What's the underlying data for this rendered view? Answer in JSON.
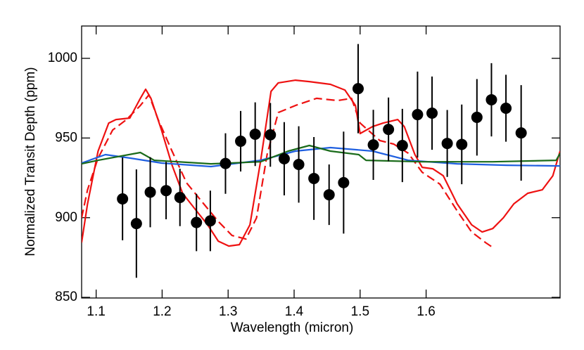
{
  "chart_data": {
    "type": "scatter",
    "xlabel": "Wavelength (micron)",
    "ylabel": "Normalized Transit Depth (ppm)",
    "xlim": [
      1.078,
      1.803
    ],
    "ylim": [
      849.6,
      1020.3
    ],
    "xticks": [
      1.1,
      1.2,
      1.3,
      1.4,
      1.5,
      1.6
    ],
    "yticks": [
      850,
      900,
      950,
      1000
    ],
    "points": {
      "color": "#000000",
      "x": [
        1.14,
        1.161,
        1.182,
        1.206,
        1.227,
        1.252,
        1.273,
        1.296,
        1.319,
        1.341,
        1.364,
        1.385,
        1.407,
        1.43,
        1.453,
        1.475,
        1.497,
        1.52,
        1.543,
        1.564,
        1.587,
        1.609,
        1.632,
        1.654,
        1.677,
        1.699,
        1.721,
        1.744
      ],
      "values": [
        911.8,
        896.3,
        916.0,
        917.0,
        912.7,
        897.0,
        898.0,
        934.0,
        948.0,
        952.4,
        952.0,
        937.0,
        933.4,
        924.6,
        914.4,
        922.0,
        981.0,
        945.7,
        955.4,
        945.3,
        964.7,
        965.6,
        946.6,
        946.0,
        963.0,
        974.0,
        968.7,
        953.2
      ],
      "errors": [
        26,
        34,
        22,
        18,
        18,
        18,
        19,
        19,
        19,
        20,
        20,
        23,
        24,
        26,
        19,
        32,
        28,
        22,
        20,
        23,
        27,
        23,
        21,
        25,
        24,
        23,
        21,
        30
      ]
    },
    "lines": [
      {
        "color": "#ee1111",
        "dashed": false,
        "x": [
          1.078,
          1.087,
          1.103,
          1.119,
          1.13,
          1.151,
          1.167,
          1.175,
          1.183,
          1.199,
          1.215,
          1.231,
          1.252,
          1.269,
          1.285,
          1.301,
          1.317,
          1.333,
          1.349,
          1.365,
          1.376,
          1.402,
          1.423,
          1.455,
          1.477,
          1.493,
          1.5,
          1.519,
          1.535,
          1.557,
          1.567,
          1.583,
          1.594,
          1.61,
          1.626,
          1.647,
          1.669,
          1.685,
          1.701,
          1.717,
          1.733,
          1.754,
          1.776,
          1.792,
          1.803
        ],
        "values": [
          884.4,
          908.7,
          941.8,
          959.4,
          961.6,
          962.5,
          974.9,
          980.6,
          974.9,
          955.0,
          933.0,
          915.3,
          904.3,
          895.5,
          885.3,
          882.2,
          883.1,
          895.5,
          935.1,
          979.3,
          984.6,
          986.3,
          985.4,
          983.7,
          980.1,
          970.4,
          952.8,
          957.2,
          959.4,
          961.6,
          957.2,
          939.6,
          931.6,
          930.7,
          926.3,
          908.7,
          895.5,
          891.0,
          893.2,
          899.9,
          908.7,
          915.3,
          917.5,
          926.3,
          941.8
        ]
      },
      {
        "color": "#ee1111",
        "dashed": true,
        "x": [
          1.078,
          1.087,
          1.103,
          1.125,
          1.146,
          1.167,
          1.18,
          1.194,
          1.215,
          1.237,
          1.263,
          1.285,
          1.306,
          1.327,
          1.343,
          1.359,
          1.376,
          1.402,
          1.434,
          1.466,
          1.487,
          1.5,
          1.53,
          1.551,
          1.573,
          1.594,
          1.621,
          1.647,
          1.669,
          1.69,
          1.701
        ],
        "values": [
          899.9,
          917.5,
          937.4,
          955.0,
          961.6,
          970.4,
          977.1,
          961.6,
          941.8,
          921.9,
          908.7,
          897.7,
          888.8,
          886.6,
          899.9,
          939.6,
          966.0,
          970.4,
          974.9,
          973.5,
          974.9,
          959.4,
          948.4,
          946.2,
          940.4,
          928.5,
          921.0,
          904.3,
          891.0,
          884.4,
          881.3
        ]
      },
      {
        "color": "#1f5fe0",
        "dashed": false,
        "x": [
          1.078,
          1.114,
          1.151,
          1.199,
          1.274,
          1.349,
          1.402,
          1.455,
          1.519,
          1.573,
          1.647,
          1.722,
          1.803
        ],
        "values": [
          934.3,
          939.6,
          937.4,
          934.3,
          932.1,
          936.0,
          941.8,
          944.0,
          941.8,
          936.0,
          933.8,
          932.9,
          932.5
        ]
      },
      {
        "color": "#1a6b1a",
        "dashed": false,
        "x": [
          1.078,
          1.103,
          1.167,
          1.188,
          1.274,
          1.349,
          1.391,
          1.423,
          1.455,
          1.498,
          1.509,
          1.594,
          1.701,
          1.797,
          1.803
        ],
        "values": [
          933.8,
          936.0,
          940.9,
          936.0,
          933.8,
          935.1,
          941.8,
          945.3,
          941.8,
          939.6,
          936.0,
          935.1,
          935.1,
          936.0,
          940.4
        ]
      }
    ]
  }
}
